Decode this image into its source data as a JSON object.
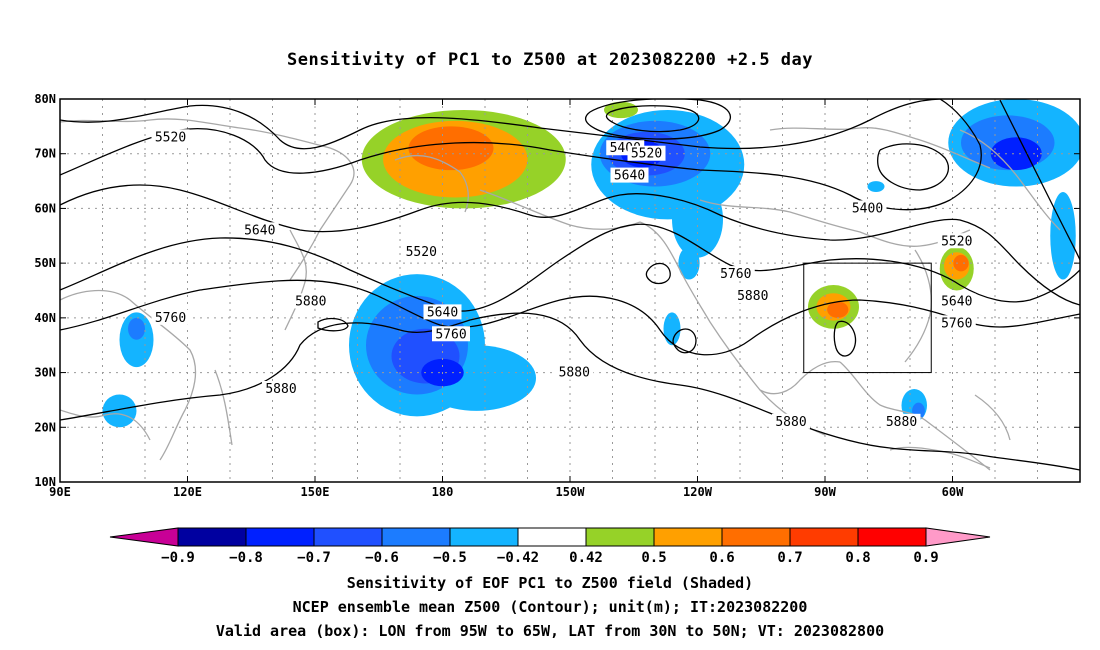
{
  "title": "Sensitivity of PC1 to Z500 at 2023082200 +2.5 day",
  "axes": {
    "lat_labels": [
      "80N",
      "70N",
      "60N",
      "50N",
      "40N",
      "30N",
      "20N",
      "10N"
    ],
    "lon_labels": [
      "90E",
      "120E",
      "150E",
      "180",
      "150W",
      "120W",
      "90W",
      "60W"
    ]
  },
  "contour_labels": [
    {
      "text": "5520",
      "lon": 116,
      "lat": 73
    },
    {
      "text": "5400",
      "lon": 223,
      "lat": 71
    },
    {
      "text": "5520",
      "lon": 228,
      "lat": 70
    },
    {
      "text": "5640",
      "lon": 224,
      "lat": 66
    },
    {
      "text": "5640",
      "lon": 137,
      "lat": 56
    },
    {
      "text": "5520",
      "lon": 175,
      "lat": 52
    },
    {
      "text": "5880",
      "lon": 149,
      "lat": 43
    },
    {
      "text": "5640",
      "lon": 180,
      "lat": 41
    },
    {
      "text": "5760",
      "lon": 182,
      "lat": 37
    },
    {
      "text": "5760",
      "lon": 116,
      "lat": 40
    },
    {
      "text": "5880",
      "lon": 142,
      "lat": 27
    },
    {
      "text": "5880",
      "lon": 211,
      "lat": 30
    },
    {
      "text": "5760",
      "lon": 249,
      "lat": 48
    },
    {
      "text": "5880",
      "lon": 253,
      "lat": 44
    },
    {
      "text": "5400",
      "lon": 280,
      "lat": 60
    },
    {
      "text": "5520",
      "lon": 301,
      "lat": 54
    },
    {
      "text": "5640",
      "lon": 301,
      "lat": 43
    },
    {
      "text": "5760",
      "lon": 301,
      "lat": 39
    },
    {
      "text": "5880",
      "lon": 262,
      "lat": 21
    },
    {
      "text": "5880",
      "lon": 288,
      "lat": 21
    }
  ],
  "colorbar": {
    "labels": [
      "−0.9",
      "−0.8",
      "−0.7",
      "−0.6",
      "−0.5",
      "−0.42",
      "0.42",
      "0.5",
      "0.6",
      "0.7",
      "0.8",
      "0.9"
    ],
    "colors": [
      "#0000a0",
      "#0020ff",
      "#2050ff",
      "#1c7cff",
      "#14b4ff",
      "#ffffff",
      "#96d228",
      "#ffa000",
      "#ff6e00",
      "#ff3c00",
      "#ff0000"
    ],
    "low_end": "#c80096",
    "high_end": "#ff9ac8"
  },
  "footer": {
    "line1": "Sensitivity of EOF PC1 to Z500 field (Shaded)",
    "line2": "NCEP ensemble mean Z500 (Contour); unit(m); IT:2023082200",
    "line3": "Valid area (box): LON from 95W to 65W, LAT from 30N to 50N; VT: 2023082800"
  },
  "valid_box": {
    "lon_min": 265,
    "lon_max": 295,
    "lat_min": 30,
    "lat_max": 50
  }
}
